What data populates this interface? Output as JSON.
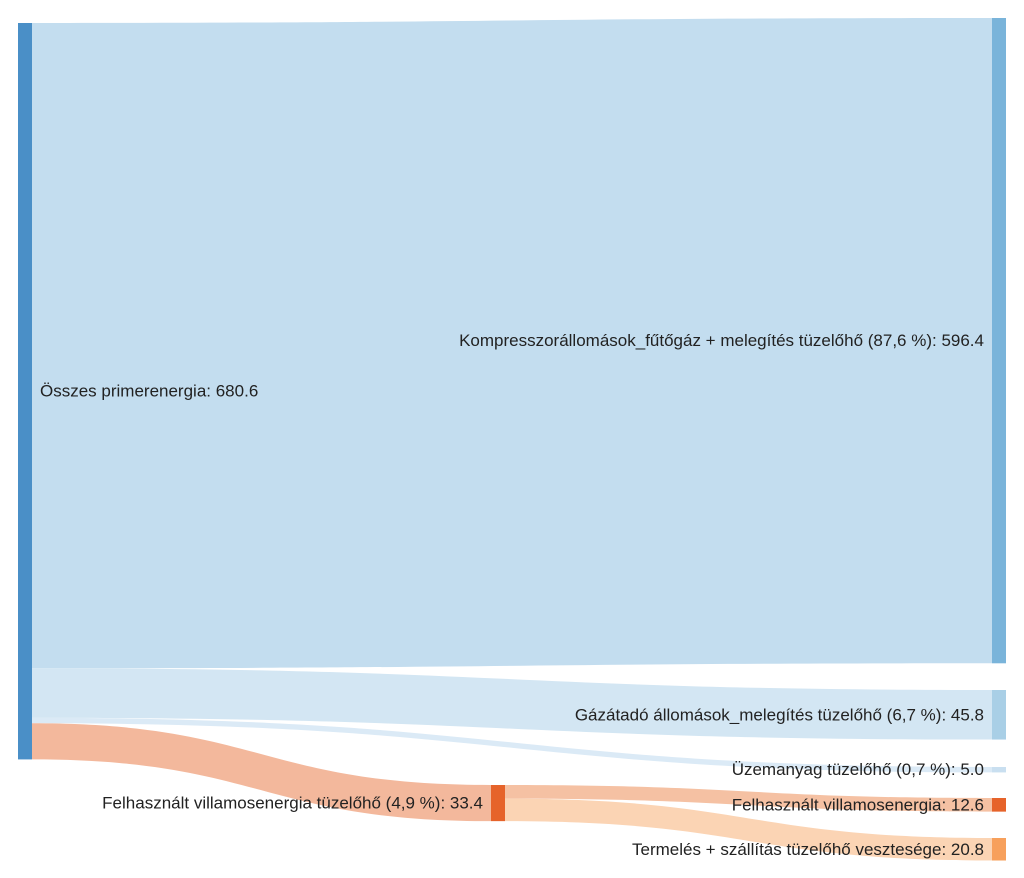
{
  "chart_data": {
    "type": "sankey",
    "nodes": [
      {
        "id": "total",
        "label": "Összes primerenergia: 680.6",
        "value": 680.6,
        "color": "#4a8fc7"
      },
      {
        "id": "compressor",
        "label": "Kompresszorállomások_fűtőgáz + melegítés tüzelőhő (87,6 %): 596.4",
        "value": 596.4,
        "color": "#7ab4da"
      },
      {
        "id": "gas_station",
        "label": "Gázátadó állomások_melegítés tüzelőhő (6,7 %): 45.8",
        "value": 45.8,
        "color": "#a9cfe6"
      },
      {
        "id": "fuel",
        "label": "Üzemanyag tüzelőhő (0,7 %): 5.0",
        "value": 5.0,
        "color": "#c9dff0"
      },
      {
        "id": "electricity_fuel",
        "label": "Felhasznált villamosenergia tüzelőhő (4,9 %): 33.4",
        "value": 33.4,
        "color": "#e6632a"
      },
      {
        "id": "electricity",
        "label": "Felhasznált villamosenergia: 12.6",
        "value": 12.6,
        "color": "#e6632a"
      },
      {
        "id": "losses",
        "label": "Termelés + szállítás tüzelőhő vesztesége: 20.8",
        "value": 20.8,
        "color": "#f7a05c"
      }
    ],
    "links": [
      {
        "source": "total",
        "target": "compressor",
        "value": 596.4,
        "color": "#c3ddef"
      },
      {
        "source": "total",
        "target": "gas_station",
        "value": 45.8,
        "color": "#d3e6f3"
      },
      {
        "source": "total",
        "target": "fuel",
        "value": 5.0,
        "color": "#dbeaf6"
      },
      {
        "source": "total",
        "target": "electricity_fuel",
        "value": 33.4,
        "color": "#f3b89c"
      },
      {
        "source": "electricity_fuel",
        "target": "electricity",
        "value": 12.6,
        "color": "#f5c1a3"
      },
      {
        "source": "electricity_fuel",
        "target": "losses",
        "value": 20.8,
        "color": "#fbd4b4"
      }
    ]
  }
}
